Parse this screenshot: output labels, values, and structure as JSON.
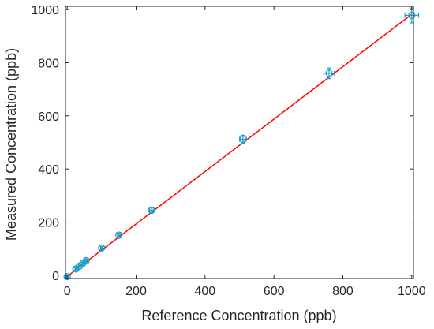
{
  "chart_data": {
    "type": "scatter",
    "title": "",
    "xlabel": "Reference Concentration (ppb)",
    "ylabel": "Measured Concentration (ppb)",
    "xlim": [
      -5,
      1005
    ],
    "ylim": [
      -12,
      1012
    ],
    "xticks": [
      0,
      200,
      400,
      600,
      800,
      1000
    ],
    "yticks": [
      0,
      200,
      400,
      600,
      800,
      1000
    ],
    "grid": false,
    "legend": "none",
    "series": [
      {
        "type": "scatter",
        "marker": "circle",
        "color": "#1f9fd0",
        "points": [
          {
            "x": 0,
            "y": -5,
            "xerr": 2,
            "yerr": 3
          },
          {
            "x": 25,
            "y": 24,
            "xerr": 2,
            "yerr": 4
          },
          {
            "x": 35,
            "y": 34,
            "xerr": 2,
            "yerr": 4
          },
          {
            "x": 45,
            "y": 45,
            "xerr": 2,
            "yerr": 4
          },
          {
            "x": 55,
            "y": 55,
            "xerr": 2,
            "yerr": 5
          },
          {
            "x": 100,
            "y": 103,
            "xerr": 3,
            "yerr": 6
          },
          {
            "x": 150,
            "y": 151,
            "xerr": 4,
            "yerr": 7
          },
          {
            "x": 245,
            "y": 245,
            "xerr": 6,
            "yerr": 8
          },
          {
            "x": 510,
            "y": 512,
            "xerr": 10,
            "yerr": 15
          },
          {
            "x": 760,
            "y": 760,
            "xerr": 15,
            "yerr": 20
          },
          {
            "x": 1000,
            "y": 978,
            "xerr": 20,
            "yerr": 28
          }
        ]
      },
      {
        "type": "line",
        "color": "#ff0000",
        "x": [
          0,
          1000
        ],
        "y": [
          -4,
          982
        ]
      }
    ]
  }
}
